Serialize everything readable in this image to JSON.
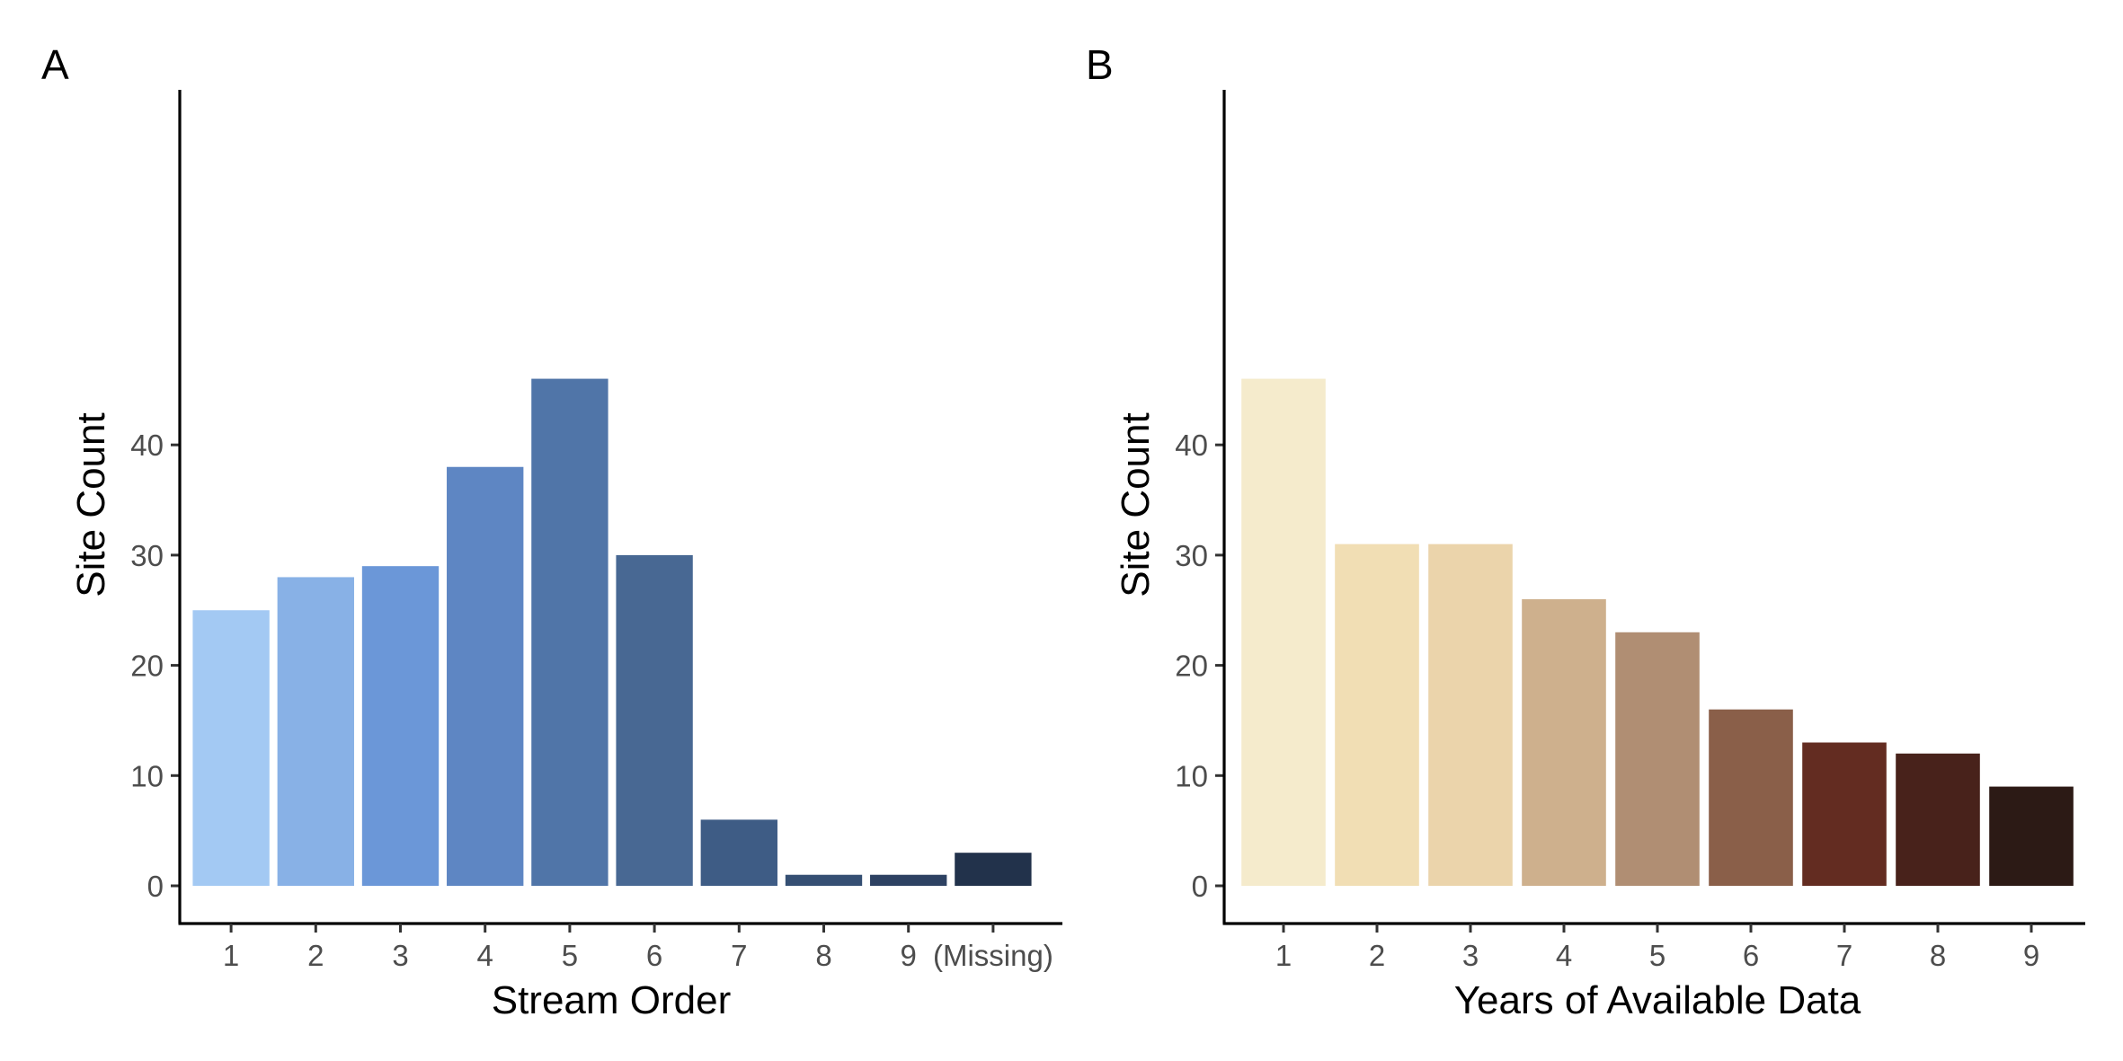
{
  "chart_data": [
    {
      "type": "bar",
      "panel_label": "A",
      "xlabel": "Stream Order",
      "ylabel": "Site Count",
      "categories": [
        "1",
        "2",
        "3",
        "4",
        "5",
        "6",
        "7",
        "8",
        "9",
        "(Missing)"
      ],
      "values": [
        25,
        28,
        29,
        38,
        46,
        30,
        6,
        1,
        1,
        3
      ],
      "colors": [
        "#a3c9f3",
        "#88b1e6",
        "#6b97d8",
        "#5e86c3",
        "#5075a8",
        "#486893",
        "#3e5c85",
        "#354f73",
        "#2d4162",
        "#22324b"
      ],
      "ylim": [
        0,
        47
      ],
      "yticks": [
        0,
        10,
        20,
        30,
        40
      ],
      "grid": false,
      "legend": "none"
    },
    {
      "type": "bar",
      "panel_label": "B",
      "xlabel": "Years of Available Data",
      "ylabel": "Site Count",
      "categories": [
        "1",
        "2",
        "3",
        "4",
        "5",
        "6",
        "7",
        "8",
        "9"
      ],
      "values": [
        46,
        31,
        31,
        26,
        23,
        16,
        13,
        12,
        9
      ],
      "colors": [
        "#f5ebcc",
        "#f1deb4",
        "#ebd4ab",
        "#ceb08d",
        "#b08e73",
        "#8a5f49",
        "#632c21",
        "#48221b",
        "#2c1a15"
      ],
      "ylim": [
        0,
        47
      ],
      "yticks": [
        0,
        10,
        20,
        30,
        40
      ],
      "grid": false,
      "legend": "none"
    }
  ]
}
